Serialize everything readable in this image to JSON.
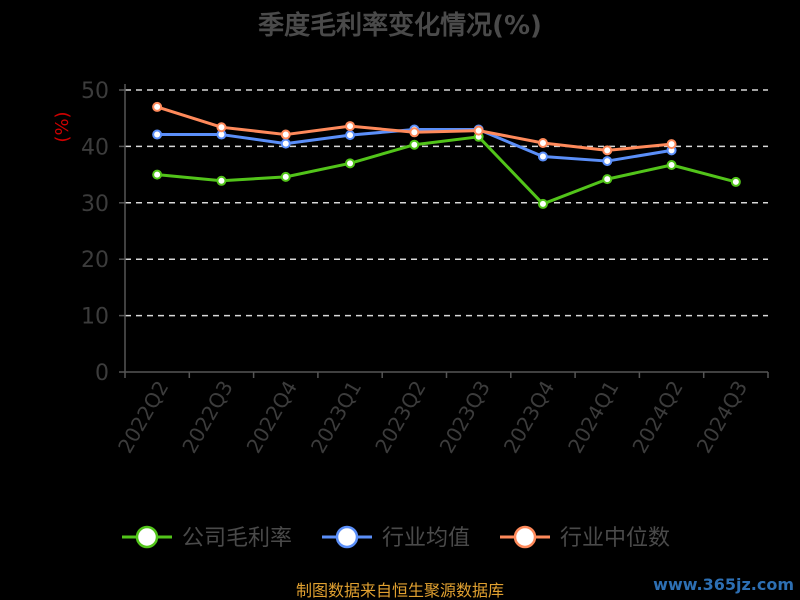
{
  "chart_data": {
    "type": "line",
    "title": "季度毛利率变化情况(%)",
    "ylabel": "(%)",
    "categories": [
      "2022Q2",
      "2022Q3",
      "2022Q4",
      "2023Q1",
      "2023Q2",
      "2023Q3",
      "2023Q4",
      "2024Q1",
      "2024Q2",
      "2024Q3"
    ],
    "ylim": [
      0,
      50
    ],
    "yticks": [
      0,
      10,
      20,
      30,
      40,
      50
    ],
    "grid": true,
    "legend_position": "bottom",
    "series": [
      {
        "name": "公司毛利率",
        "color": "#52c41a",
        "values": [
          35.0,
          33.9,
          34.6,
          37.0,
          40.3,
          41.7,
          29.8,
          34.2,
          36.7,
          33.7
        ]
      },
      {
        "name": "行业均值",
        "color": "#5b8ff9",
        "values": [
          42.1,
          42.1,
          40.5,
          42.0,
          43.0,
          43.0,
          38.2,
          37.4,
          39.3,
          null
        ]
      },
      {
        "name": "行业中位数",
        "color": "#ff8a5b",
        "values": [
          47.0,
          43.4,
          42.1,
          43.6,
          42.5,
          42.8,
          40.6,
          39.3,
          40.4,
          null
        ]
      }
    ]
  },
  "footer": {
    "source": "制图数据来自恒生聚源数据库",
    "watermark": "www.365jz.com"
  }
}
